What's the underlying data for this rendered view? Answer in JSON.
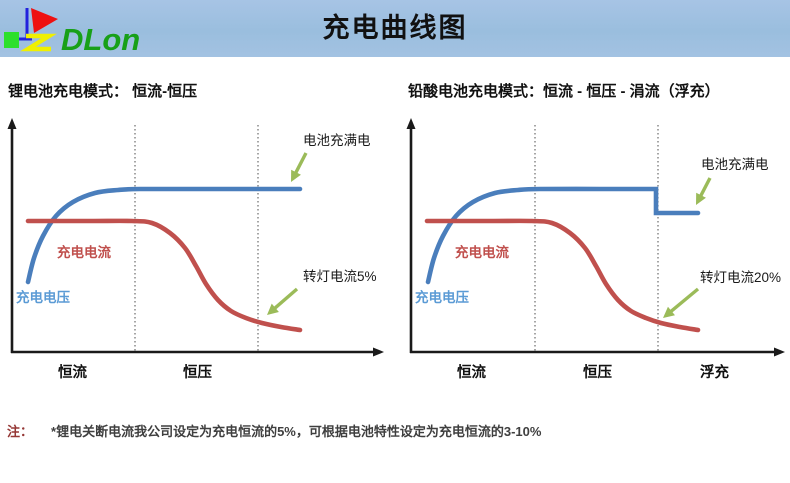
{
  "header": {
    "title": "充电曲线图",
    "logo_text": "DLon"
  },
  "note": {
    "prefix": "注：",
    "text": "*锂电关断电流我公司设定为充电恒流的5%，可根据电池特性设定为充电恒流的3-10%"
  },
  "colors": {
    "voltage": "#4a7ebc",
    "current": "#c0504d",
    "voltage_label": "#5b9bd5",
    "current_label": "#c0504d",
    "arrow": "#9bbb59",
    "axis": "#1a1a1a",
    "divider": "#4d4d4d",
    "annotation_text": "#1a1a1a",
    "phase_text": "#111111"
  },
  "chart_data": [
    {
      "type": "line",
      "title": "锂电池充电模式： 恒流-恒压",
      "phases": [
        "恒流",
        "恒压"
      ],
      "axes": {
        "y_axis_x": 12,
        "x_axis_y": 244,
        "x_end": 382,
        "y_top": 12
      },
      "dividers": [
        135,
        258
      ],
      "divider_top": 17,
      "series": [
        {
          "name": "充电电压",
          "role": "voltage",
          "points": [
            [
              28,
              174
            ],
            [
              34,
              150
            ],
            [
              43,
              128
            ],
            [
              56,
              108
            ],
            [
              73,
              94
            ],
            [
              95,
              85
            ],
            [
              118,
              82
            ],
            [
              140,
              81
            ],
            [
              200,
              81
            ],
            [
              300,
              81
            ]
          ]
        },
        {
          "name": "充电电流",
          "role": "current",
          "points": [
            [
              28,
              113
            ],
            [
              90,
              113
            ],
            [
              132,
              113
            ],
            [
              152,
              115
            ],
            [
              170,
              125
            ],
            [
              185,
              140
            ],
            [
              196,
              158
            ],
            [
              206,
              176
            ],
            [
              218,
              192
            ],
            [
              231,
              203
            ],
            [
              246,
              210
            ],
            [
              262,
              215
            ],
            [
              281,
              219
            ],
            [
              300,
              222
            ]
          ]
        }
      ],
      "curve_labels": [
        {
          "text": "充电电流",
          "x": 57,
          "y": 149,
          "color_key": "current_label"
        },
        {
          "text": "充电电压",
          "x": 16,
          "y": 194,
          "color_key": "voltage_label"
        }
      ],
      "annotations": [
        {
          "text": "电池充满电",
          "x": 303,
          "y": 37,
          "arrow": [
            306,
            45,
            291,
            74
          ]
        },
        {
          "text": "转灯电流5%",
          "x": 303,
          "y": 173,
          "arrow": [
            297,
            181,
            267,
            207
          ]
        }
      ],
      "phase_labels": [
        {
          "text": "恒流",
          "x": 58,
          "y": 269
        },
        {
          "text": "恒压",
          "x": 183,
          "y": 269
        }
      ]
    },
    {
      "type": "line",
      "title": "铅酸电池充电模式：恒流 - 恒压 - 涓流（浮充）",
      "phases": [
        "恒流",
        "恒压",
        "浮充"
      ],
      "axes": {
        "y_axis_x": 16,
        "x_axis_y": 244,
        "x_end": 388,
        "y_top": 12
      },
      "dividers": [
        140,
        263
      ],
      "divider_top": 17,
      "series": [
        {
          "name": "充电电压",
          "role": "voltage",
          "points": [
            [
              33,
              174
            ],
            [
              39,
              150
            ],
            [
              48,
              128
            ],
            [
              61,
              108
            ],
            [
              78,
              94
            ],
            [
              100,
              85
            ],
            [
              123,
              82
            ],
            [
              145,
              81
            ],
            [
              205,
              81
            ],
            [
              259,
              81
            ]
          ],
          "tail": [
            [
              261,
              81
            ],
            [
              261,
              105
            ],
            [
              303,
              105
            ]
          ]
        },
        {
          "name": "充电电流",
          "role": "current",
          "points": [
            [
              32,
              113
            ],
            [
              95,
              113
            ],
            [
              137,
              113
            ],
            [
              157,
              115
            ],
            [
              175,
              125
            ],
            [
              190,
              140
            ],
            [
              201,
              158
            ],
            [
              211,
              176
            ],
            [
              223,
              192
            ],
            [
              236,
              203
            ],
            [
              251,
              210
            ],
            [
              266,
              215
            ],
            [
              285,
              219
            ],
            [
              303,
              222
            ]
          ]
        }
      ],
      "curve_labels": [
        {
          "text": "充电电流",
          "x": 60,
          "y": 149,
          "color_key": "current_label"
        },
        {
          "text": "充电电压",
          "x": 20,
          "y": 194,
          "color_key": "voltage_label"
        }
      ],
      "annotations": [
        {
          "text": "电池充满电",
          "x": 306,
          "y": 61,
          "arrow": [
            315,
            70,
            301,
            97
          ]
        },
        {
          "text": "转灯电流20%",
          "x": 305,
          "y": 174,
          "arrow": [
            303,
            181,
            268,
            210
          ]
        }
      ],
      "phase_labels": [
        {
          "text": "恒流",
          "x": 62,
          "y": 269
        },
        {
          "text": "恒压",
          "x": 188,
          "y": 269
        },
        {
          "text": "浮充",
          "x": 305,
          "y": 269
        }
      ]
    }
  ]
}
